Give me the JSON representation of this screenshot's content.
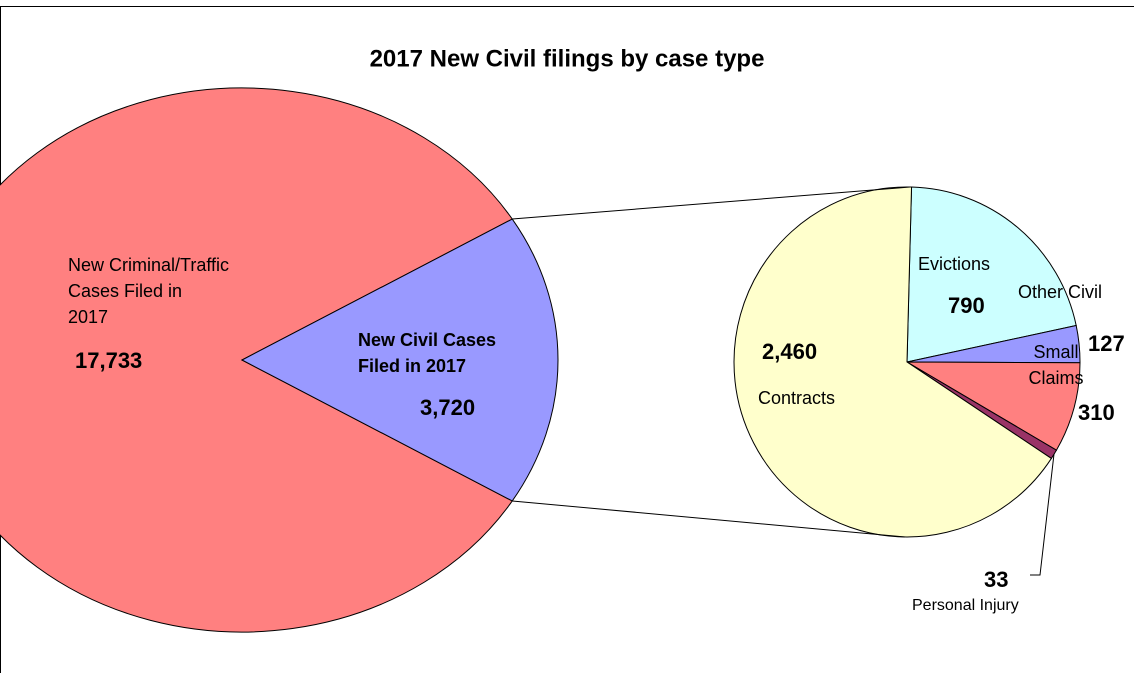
{
  "chart_data": [
    {
      "type": "pie",
      "title": "2017 New Civil filings by case type",
      "categories": [
        "New Criminal/Traffic\nCases Filed in\n2017",
        "New Civil Cases\nFiled in 2017"
      ],
      "values": [
        17733,
        3720
      ],
      "value_labels": [
        "17,733",
        "3,720"
      ],
      "colors": [
        "#ff8080",
        "#9999ff"
      ]
    },
    {
      "type": "pie",
      "categories": [
        "Evictions",
        "Other Civil",
        "Small\nClaims",
        "Personal Injury",
        "Contracts"
      ],
      "values": [
        790,
        127,
        310,
        33,
        2460
      ],
      "value_labels": [
        "790",
        "127",
        "310",
        "33",
        "2,460"
      ],
      "colors": [
        "#ccffff",
        "#9999ff",
        "#ff8080",
        "#993366",
        "#ffffcc"
      ]
    }
  ]
}
